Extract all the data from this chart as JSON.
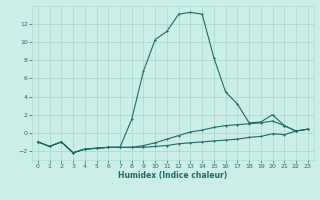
{
  "xlabel": "Humidex (Indice chaleur)",
  "background_color": "#cceee8",
  "grid_color": "#aaddcc",
  "line_color": "#1a6b6b",
  "xlim": [
    -0.5,
    23.5
  ],
  "ylim": [
    -3.0,
    14.0
  ],
  "yticks": [
    -2,
    0,
    2,
    4,
    6,
    8,
    10,
    12
  ],
  "xticks": [
    0,
    1,
    2,
    3,
    4,
    5,
    6,
    7,
    8,
    9,
    10,
    11,
    12,
    13,
    14,
    15,
    16,
    17,
    18,
    19,
    20,
    21,
    22,
    23
  ],
  "line1_x": [
    0,
    1,
    2,
    3,
    4,
    5,
    6,
    7,
    8,
    9,
    10,
    11,
    12,
    13,
    14,
    15,
    16,
    17,
    18,
    19,
    20,
    21,
    22,
    23
  ],
  "line1_y": [
    -1.0,
    -1.5,
    -1.0,
    -2.2,
    -1.8,
    -1.7,
    -1.6,
    -1.6,
    -1.6,
    -1.6,
    -1.5,
    -1.4,
    -1.2,
    -1.1,
    -1.0,
    -0.9,
    -0.8,
    -0.7,
    -0.5,
    -0.4,
    -0.1,
    -0.2,
    0.2,
    0.4
  ],
  "line2_x": [
    0,
    1,
    2,
    3,
    4,
    5,
    6,
    7,
    8,
    9,
    10,
    11,
    12,
    13,
    14,
    15,
    16,
    17,
    18,
    19,
    20,
    21,
    22,
    23
  ],
  "line2_y": [
    -1.0,
    -1.5,
    -1.0,
    -2.2,
    -1.8,
    -1.7,
    -1.6,
    -1.6,
    -1.6,
    -1.4,
    -1.1,
    -0.7,
    -0.3,
    0.1,
    0.3,
    0.6,
    0.8,
    0.9,
    1.0,
    1.1,
    1.3,
    0.8,
    0.2,
    0.4
  ],
  "line3_x": [
    0,
    1,
    2,
    3,
    4,
    5,
    6,
    7,
    8,
    9,
    10,
    11,
    12,
    13,
    14,
    15,
    16,
    17,
    18,
    19,
    20,
    21,
    22,
    23
  ],
  "line3_y": [
    -1.0,
    -1.5,
    -1.0,
    -2.2,
    -1.8,
    -1.7,
    -1.6,
    -1.6,
    1.5,
    6.8,
    10.3,
    11.2,
    13.1,
    13.3,
    13.1,
    8.3,
    4.5,
    3.2,
    1.1,
    1.2,
    2.0,
    0.8,
    0.2,
    0.4
  ]
}
